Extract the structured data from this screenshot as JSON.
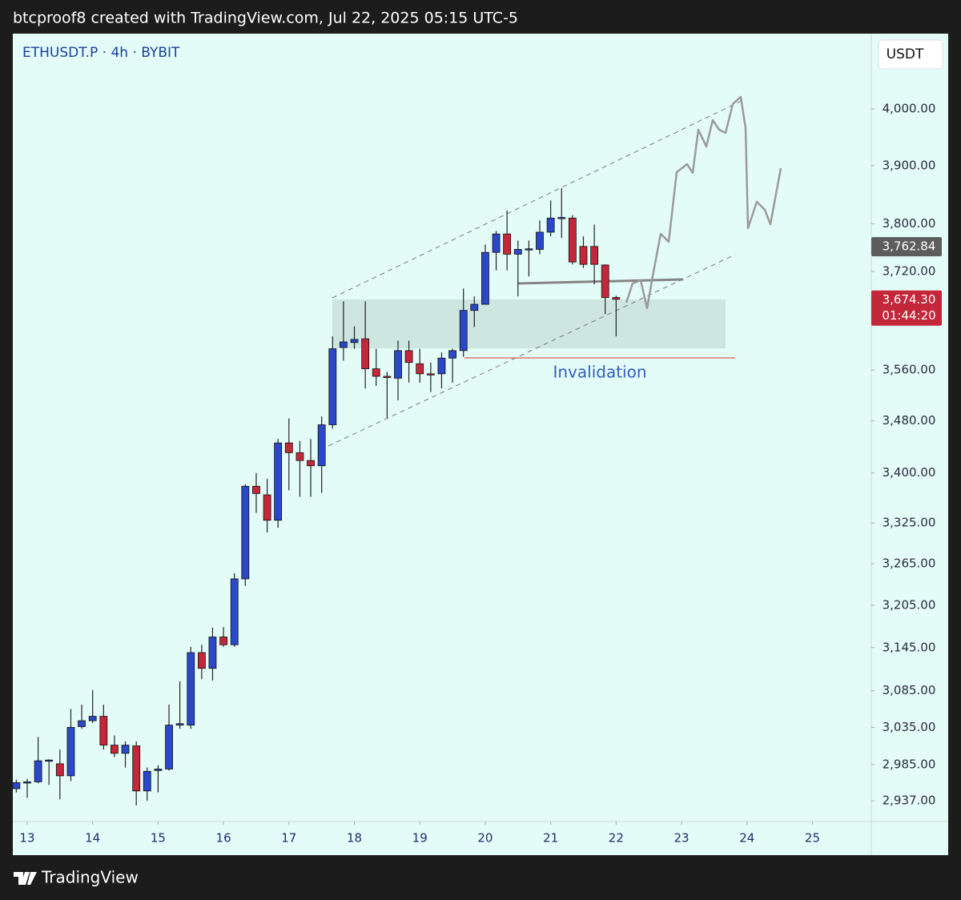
{
  "header": "btcproof8 created with TradingView.com, Jul 22, 2025 05:15 UTC-5",
  "footer": "TradingView",
  "chart_data": {
    "type": "candlestick",
    "title": "ETHUSDT.P · 4h · BYBIT",
    "y_axis_label": "USDT",
    "log_scale": true,
    "up_color": "#2a48c8",
    "down_color": "#c4273a",
    "x": [
      12.833,
      13,
      13.167,
      13.333,
      13.5,
      13.667,
      13.833,
      14,
      14.167,
      14.333,
      14.5,
      14.667,
      14.833,
      15,
      15.167,
      15.333,
      15.5,
      15.667,
      15.833,
      16,
      16.167,
      16.333,
      16.5,
      16.667,
      16.833,
      17,
      17.167,
      17.333,
      17.5,
      17.667,
      17.833,
      18,
      18.167,
      18.333,
      18.5,
      18.667,
      18.833,
      19,
      19.167,
      19.333,
      19.5,
      19.667,
      19.833,
      20,
      20.167,
      20.333,
      20.5,
      20.667,
      20.833,
      21,
      21.167,
      21.333,
      21.5,
      21.667,
      21.833,
      22
    ],
    "open": [
      2953,
      2961,
      2962,
      2990,
      2986,
      2970,
      3036,
      3044,
      3050,
      3011,
      3000,
      3010,
      2950,
      2977,
      2979,
      3038,
      3038,
      3138,
      3116,
      3160,
      3149,
      3243,
      3380,
      3367,
      3329,
      3446,
      3431,
      3419,
      3411,
      3474,
      3596,
      3604,
      3610,
      3562,
      3550,
      3547,
      3591,
      3570,
      3554,
      3554,
      3579,
      3591,
      3656,
      3666,
      3752,
      3783,
      3749,
      3757,
      3757,
      3786,
      3810,
      3810,
      3762,
      3762,
      3731,
      3677
    ],
    "high": [
      2965,
      2966,
      3022,
      2992,
      3005,
      3060,
      3066,
      3086,
      3066,
      3024,
      3016,
      3016,
      2981,
      2984,
      3066,
      3098,
      3146,
      3149,
      3173,
      3174,
      3251,
      3383,
      3400,
      3391,
      3452,
      3484,
      3449,
      3452,
      3487,
      3614,
      3671,
      3630,
      3671,
      3594,
      3557,
      3607,
      3607,
      3594,
      3572,
      3588,
      3594,
      3692,
      3679,
      3765,
      3788,
      3823,
      3772,
      3772,
      3806,
      3840,
      3861,
      3815,
      3779,
      3799,
      3732,
      3680
    ],
    "low": [
      2948,
      2941,
      2960,
      2958,
      2939,
      2963,
      3033,
      3041,
      3005,
      2995,
      2981,
      2931,
      2937,
      2948,
      2977,
      3033,
      3033,
      3101,
      3099,
      3146,
      3146,
      3233,
      3340,
      3311,
      3318,
      3374,
      3364,
      3364,
      3370,
      3468,
      3575,
      3594,
      3531,
      3535,
      3484,
      3512,
      3540,
      3540,
      3525,
      3531,
      3540,
      3581,
      3629,
      3666,
      3722,
      3722,
      3679,
      3712,
      3749,
      3779,
      3776,
      3732,
      3726,
      3699,
      3650,
      3614
    ],
    "close": [
      2961,
      2962,
      2990,
      2991,
      2970,
      3035,
      3044,
      3050,
      3011,
      3000,
      3011,
      2950,
      2976,
      2979,
      3038,
      3040,
      3138,
      3116,
      3160,
      3149,
      3243,
      3380,
      3369,
      3329,
      3446,
      3431,
      3419,
      3411,
      3474,
      3594,
      3605,
      3609,
      3562,
      3550,
      3549,
      3591,
      3572,
      3554,
      3553,
      3579,
      3591,
      3656,
      3666,
      3752,
      3783,
      3749,
      3757,
      3758,
      3786,
      3810,
      3811,
      3736,
      3732,
      3732,
      3677,
      3674.3
    ],
    "ylim": [
      2910,
      4137
    ],
    "yticks": [
      {
        "value": 2937,
        "label": "2,937.00"
      },
      {
        "value": 2985,
        "label": "2,985.00"
      },
      {
        "value": 3035,
        "label": "3,035.00"
      },
      {
        "value": 3085,
        "label": "3,085.00"
      },
      {
        "value": 3145,
        "label": "3,145.00"
      },
      {
        "value": 3205,
        "label": "3,205.00"
      },
      {
        "value": 3265,
        "label": "3,265.00"
      },
      {
        "value": 3325,
        "label": "3,325.00"
      },
      {
        "value": 3400,
        "label": "3,400.00"
      },
      {
        "value": 3480,
        "label": "3,480.00"
      },
      {
        "value": 3560,
        "label": "3,560.00"
      },
      {
        "value": 3720,
        "label": "3,720.00"
      },
      {
        "value": 3800,
        "label": "3,800.00"
      },
      {
        "value": 3900,
        "label": "3,900.00"
      },
      {
        "value": 4000,
        "label": "4,000.00"
      }
    ],
    "xlim": [
      12.78,
      25.9
    ],
    "xticks": [
      13,
      14,
      15,
      16,
      17,
      18,
      19,
      20,
      21,
      22,
      23,
      24,
      25
    ],
    "price_labels": [
      {
        "value": 3762.84,
        "label": "3,762.84",
        "color": "#5d5d5d"
      },
      {
        "value": 3674.3,
        "label": "3,674.30",
        "countdown": "01:44:20",
        "color": "#c4273a"
      }
    ],
    "annotation": "Invalidation"
  }
}
